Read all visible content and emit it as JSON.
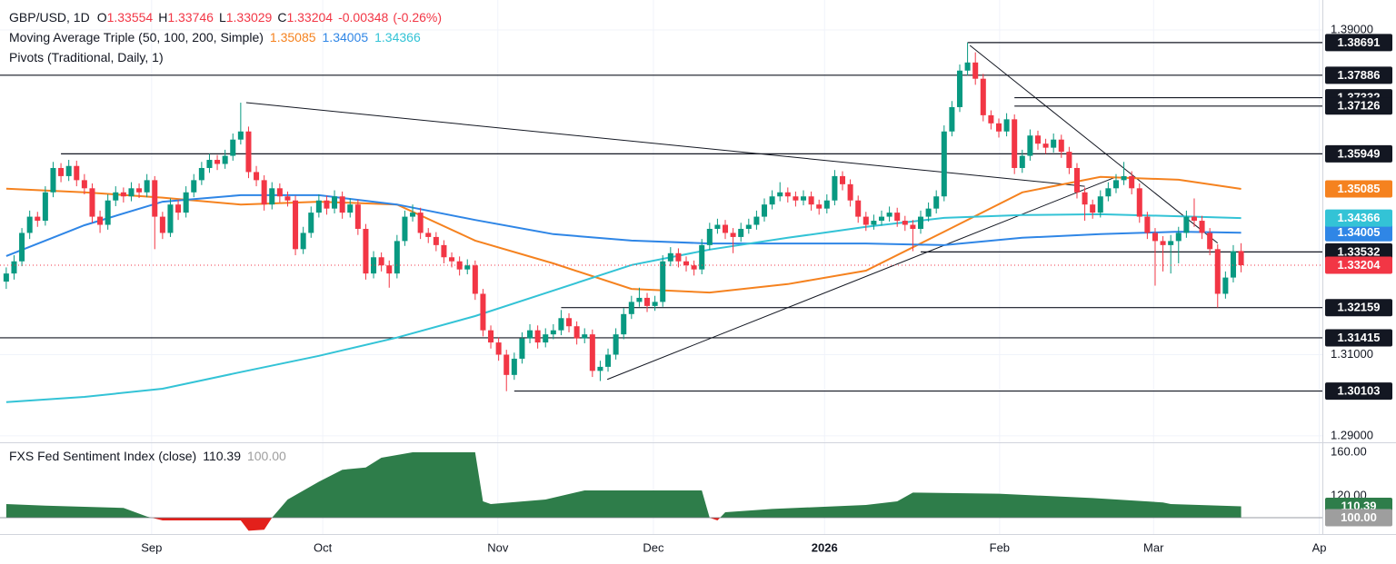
{
  "chart_data": {
    "type": "candlestick",
    "symbol": "GBP/USD, 1D",
    "ohlc_labels": [
      "O",
      "H",
      "L",
      "C"
    ],
    "change": -0.00348,
    "change_pct": {
      "value": -0.26,
      "label": "(-0.26%)"
    },
    "up_color": "#089981",
    "down_color": "#f23645",
    "grid": true,
    "xlim": [
      -0.8,
      168.4
    ],
    "xticks": [
      {
        "value": 18.6,
        "label": "Sep"
      },
      {
        "value": 40.5,
        "label": "Oct"
      },
      {
        "value": 62.9,
        "label": "Nov"
      },
      {
        "value": 82.8,
        "label": "Dec"
      },
      {
        "value": 104.7,
        "label": "2026"
      },
      {
        "value": 127.1,
        "label": "Feb"
      },
      {
        "value": 146.8,
        "label": "Mar"
      },
      {
        "value": 168.0,
        "label": "Ap"
      }
    ],
    "ylim": [
      1.2884,
      1.3974
    ],
    "yticks": [
      {
        "value": 1.39,
        "label": "1.39000"
      },
      {
        "value": 1.31,
        "label": "1.31000"
      },
      {
        "value": 1.29,
        "label": "1.29000"
      }
    ],
    "candles": [
      [
        1.328,
        1.3315,
        1.3262,
        1.33
      ],
      [
        1.33,
        1.3345,
        1.3285,
        1.333
      ],
      [
        1.333,
        1.3412,
        1.3318,
        1.34
      ],
      [
        1.34,
        1.3455,
        1.3385,
        1.344
      ],
      [
        1.344,
        1.3452,
        1.3415,
        1.343
      ],
      [
        1.343,
        1.3515,
        1.3418,
        1.35
      ],
      [
        1.35,
        1.3575,
        1.3488,
        1.356
      ],
      [
        1.356,
        1.3572,
        1.3525,
        1.354
      ],
      [
        1.354,
        1.358,
        1.3528,
        1.3565
      ],
      [
        1.3565,
        1.3578,
        1.3515,
        1.353
      ],
      [
        1.353,
        1.3545,
        1.3495,
        1.351
      ],
      [
        1.351,
        1.3522,
        1.3425,
        1.344
      ],
      [
        1.344,
        1.3455,
        1.34,
        1.342
      ],
      [
        1.342,
        1.3495,
        1.3408,
        1.348
      ],
      [
        1.348,
        1.3515,
        1.3466,
        1.35
      ],
      [
        1.35,
        1.3512,
        1.3475,
        1.349
      ],
      [
        1.349,
        1.3525,
        1.3478,
        1.351
      ],
      [
        1.351,
        1.3522,
        1.3486,
        1.35
      ],
      [
        1.35,
        1.3545,
        1.3488,
        1.353
      ],
      [
        1.353,
        1.354,
        1.336,
        1.344
      ],
      [
        1.344,
        1.3452,
        1.3385,
        1.34
      ],
      [
        1.34,
        1.3485,
        1.339,
        1.347
      ],
      [
        1.347,
        1.3482,
        1.3432,
        1.345
      ],
      [
        1.345,
        1.3515,
        1.3438,
        1.35
      ],
      [
        1.35,
        1.3545,
        1.3488,
        1.353
      ],
      [
        1.353,
        1.3575,
        1.3518,
        1.356
      ],
      [
        1.356,
        1.3595,
        1.3548,
        1.358
      ],
      [
        1.358,
        1.3592,
        1.3555,
        1.357
      ],
      [
        1.357,
        1.3605,
        1.3558,
        1.359
      ],
      [
        1.359,
        1.3645,
        1.3578,
        1.363
      ],
      [
        1.363,
        1.3721,
        1.3618,
        1.365
      ],
      [
        1.365,
        1.3662,
        1.3535,
        1.355
      ],
      [
        1.355,
        1.3565,
        1.3515,
        1.353
      ],
      [
        1.353,
        1.3542,
        1.3455,
        1.347
      ],
      [
        1.347,
        1.3525,
        1.3458,
        1.351
      ],
      [
        1.351,
        1.3522,
        1.3475,
        1.349
      ],
      [
        1.349,
        1.3502,
        1.3465,
        1.348
      ],
      [
        1.348,
        1.3492,
        1.3345,
        1.336
      ],
      [
        1.336,
        1.3415,
        1.3348,
        1.34
      ],
      [
        1.34,
        1.3465,
        1.3388,
        1.345
      ],
      [
        1.345,
        1.3495,
        1.3438,
        1.348
      ],
      [
        1.348,
        1.3492,
        1.3445,
        1.346
      ],
      [
        1.346,
        1.3505,
        1.3448,
        1.349
      ],
      [
        1.349,
        1.3502,
        1.3435,
        1.345
      ],
      [
        1.345,
        1.3485,
        1.3438,
        1.347
      ],
      [
        1.347,
        1.3482,
        1.3395,
        1.341
      ],
      [
        1.341,
        1.3422,
        1.3285,
        1.33
      ],
      [
        1.33,
        1.3355,
        1.3288,
        1.334
      ],
      [
        1.334,
        1.3352,
        1.3305,
        1.332
      ],
      [
        1.332,
        1.3332,
        1.3265,
        1.33
      ],
      [
        1.33,
        1.3395,
        1.3288,
        1.338
      ],
      [
        1.338,
        1.3455,
        1.3368,
        1.344
      ],
      [
        1.344,
        1.347,
        1.3428,
        1.345
      ],
      [
        1.345,
        1.3462,
        1.3385,
        1.34
      ],
      [
        1.34,
        1.3412,
        1.3375,
        1.339
      ],
      [
        1.339,
        1.3402,
        1.3355,
        1.337
      ],
      [
        1.337,
        1.3382,
        1.3325,
        1.334
      ],
      [
        1.334,
        1.3352,
        1.3315,
        1.333
      ],
      [
        1.333,
        1.3342,
        1.3295,
        1.331
      ],
      [
        1.331,
        1.3335,
        1.3298,
        1.332
      ],
      [
        1.332,
        1.3332,
        1.3235,
        1.325
      ],
      [
        1.325,
        1.3262,
        1.3145,
        1.316
      ],
      [
        1.316,
        1.3172,
        1.3115,
        1.313
      ],
      [
        1.313,
        1.3142,
        1.3085,
        1.31
      ],
      [
        1.31,
        1.3112,
        1.301,
        1.305
      ],
      [
        1.305,
        1.3105,
        1.3038,
        1.309
      ],
      [
        1.309,
        1.3155,
        1.3078,
        1.314
      ],
      [
        1.314,
        1.3175,
        1.3128,
        1.316
      ],
      [
        1.316,
        1.3172,
        1.3115,
        1.313
      ],
      [
        1.313,
        1.3165,
        1.3118,
        1.315
      ],
      [
        1.315,
        1.3175,
        1.3138,
        1.316
      ],
      [
        1.316,
        1.321,
        1.3148,
        1.319
      ],
      [
        1.319,
        1.3202,
        1.3155,
        1.317
      ],
      [
        1.317,
        1.3182,
        1.3125,
        1.314
      ],
      [
        1.314,
        1.3165,
        1.3128,
        1.315
      ],
      [
        1.315,
        1.3162,
        1.3045,
        1.306
      ],
      [
        1.306,
        1.3085,
        1.3035,
        1.307
      ],
      [
        1.307,
        1.3115,
        1.3058,
        1.31
      ],
      [
        1.31,
        1.3165,
        1.3088,
        1.315
      ],
      [
        1.315,
        1.3215,
        1.3138,
        1.32
      ],
      [
        1.32,
        1.3245,
        1.3188,
        1.323
      ],
      [
        1.323,
        1.3265,
        1.3218,
        1.324
      ],
      [
        1.324,
        1.3252,
        1.3205,
        1.322
      ],
      [
        1.322,
        1.3245,
        1.3208,
        1.323
      ],
      [
        1.323,
        1.3345,
        1.3218,
        1.333
      ],
      [
        1.333,
        1.3365,
        1.3318,
        1.335
      ],
      [
        1.335,
        1.3362,
        1.3315,
        1.333
      ],
      [
        1.333,
        1.3342,
        1.3305,
        1.332
      ],
      [
        1.332,
        1.3332,
        1.3295,
        1.331
      ],
      [
        1.331,
        1.3385,
        1.3298,
        1.337
      ],
      [
        1.337,
        1.3425,
        1.3358,
        1.341
      ],
      [
        1.341,
        1.3435,
        1.3398,
        1.342
      ],
      [
        1.342,
        1.3432,
        1.3385,
        1.34
      ],
      [
        1.34,
        1.3412,
        1.335,
        1.339
      ],
      [
        1.339,
        1.3425,
        1.3378,
        1.341
      ],
      [
        1.341,
        1.3435,
        1.3398,
        1.342
      ],
      [
        1.342,
        1.3455,
        1.3408,
        1.344
      ],
      [
        1.344,
        1.3485,
        1.3428,
        1.347
      ],
      [
        1.347,
        1.3505,
        1.3458,
        1.349
      ],
      [
        1.349,
        1.3525,
        1.3478,
        1.35
      ],
      [
        1.35,
        1.3512,
        1.3475,
        1.349
      ],
      [
        1.349,
        1.3502,
        1.3465,
        1.348
      ],
      [
        1.348,
        1.3505,
        1.3468,
        1.349
      ],
      [
        1.349,
        1.3502,
        1.3455,
        1.347
      ],
      [
        1.347,
        1.3482,
        1.3445,
        1.346
      ],
      [
        1.346,
        1.3495,
        1.3448,
        1.348
      ],
      [
        1.348,
        1.3555,
        1.3468,
        1.354
      ],
      [
        1.354,
        1.3552,
        1.3505,
        1.352
      ],
      [
        1.352,
        1.3532,
        1.3465,
        1.348
      ],
      [
        1.348,
        1.3492,
        1.3425,
        1.344
      ],
      [
        1.344,
        1.3452,
        1.3405,
        1.342
      ],
      [
        1.342,
        1.3445,
        1.3408,
        1.343
      ],
      [
        1.343,
        1.3455,
        1.3418,
        1.344
      ],
      [
        1.344,
        1.3465,
        1.3428,
        1.345
      ],
      [
        1.345,
        1.3462,
        1.3415,
        1.343
      ],
      [
        1.343,
        1.3442,
        1.3405,
        1.342
      ],
      [
        1.342,
        1.3432,
        1.3355,
        1.341
      ],
      [
        1.341,
        1.3455,
        1.3398,
        1.344
      ],
      [
        1.344,
        1.3475,
        1.3428,
        1.346
      ],
      [
        1.346,
        1.3505,
        1.3448,
        1.349
      ],
      [
        1.349,
        1.3665,
        1.3478,
        1.365
      ],
      [
        1.365,
        1.3725,
        1.3638,
        1.371
      ],
      [
        1.371,
        1.3815,
        1.3698,
        1.38
      ],
      [
        1.38,
        1.3869,
        1.3788,
        1.382
      ],
      [
        1.382,
        1.3845,
        1.3765,
        1.378
      ],
      [
        1.378,
        1.3792,
        1.3675,
        1.369
      ],
      [
        1.369,
        1.3702,
        1.3655,
        1.367
      ],
      [
        1.367,
        1.3682,
        1.3635,
        1.365
      ],
      [
        1.365,
        1.3695,
        1.3638,
        1.368
      ],
      [
        1.368,
        1.3692,
        1.3545,
        1.356
      ],
      [
        1.356,
        1.3605,
        1.3548,
        1.359
      ],
      [
        1.359,
        1.3655,
        1.3578,
        1.364
      ],
      [
        1.364,
        1.3652,
        1.3605,
        1.362
      ],
      [
        1.362,
        1.3632,
        1.3595,
        1.361
      ],
      [
        1.361,
        1.3645,
        1.3598,
        1.363
      ],
      [
        1.363,
        1.3642,
        1.3585,
        1.36
      ],
      [
        1.36,
        1.3612,
        1.3545,
        1.356
      ],
      [
        1.356,
        1.3572,
        1.3485,
        1.35
      ],
      [
        1.35,
        1.3512,
        1.343,
        1.347
      ],
      [
        1.347,
        1.3482,
        1.3435,
        1.345
      ],
      [
        1.345,
        1.3505,
        1.3438,
        1.349
      ],
      [
        1.349,
        1.3525,
        1.3478,
        1.351
      ],
      [
        1.351,
        1.3545,
        1.3498,
        1.353
      ],
      [
        1.353,
        1.3575,
        1.3518,
        1.354
      ],
      [
        1.354,
        1.3552,
        1.3495,
        1.351
      ],
      [
        1.351,
        1.3522,
        1.3425,
        1.344
      ],
      [
        1.344,
        1.3452,
        1.3385,
        1.34
      ],
      [
        1.34,
        1.3412,
        1.327,
        1.338
      ],
      [
        1.338,
        1.3392,
        1.3305,
        1.337
      ],
      [
        1.337,
        1.3395,
        1.33,
        1.338
      ],
      [
        1.338,
        1.3415,
        1.3325,
        1.34
      ],
      [
        1.34,
        1.3455,
        1.3388,
        1.344
      ],
      [
        1.344,
        1.3485,
        1.3415,
        1.343
      ],
      [
        1.343,
        1.3442,
        1.3385,
        1.34
      ],
      [
        1.34,
        1.3412,
        1.3345,
        1.336
      ],
      [
        1.336,
        1.3372,
        1.3216,
        1.325
      ],
      [
        1.325,
        1.3305,
        1.3238,
        1.329
      ],
      [
        1.329,
        1.337,
        1.3278,
        1.3355
      ],
      [
        1.33554,
        1.33746,
        1.33029,
        1.33204
      ]
    ],
    "moving_averages": {
      "name": "Moving Average Triple (50, 100, 200, Simple)",
      "series": [
        {
          "color": "#f5821f",
          "x": [
            0,
            10,
            20,
            30,
            40,
            50,
            60,
            70,
            80,
            90,
            100,
            110,
            120,
            130,
            140,
            150,
            158
          ],
          "values": [
            1.3509,
            1.35,
            1.3487,
            1.347,
            1.3477,
            1.347,
            1.3381,
            1.3325,
            1.3262,
            1.3253,
            1.3274,
            1.3307,
            1.3403,
            1.35,
            1.3538,
            1.3531,
            1.35085
          ]
        },
        {
          "color": "#2f86e6",
          "x": [
            0,
            10,
            20,
            30,
            40,
            50,
            60,
            70,
            80,
            90,
            100,
            110,
            120,
            130,
            140,
            150,
            158
          ],
          "values": [
            1.3343,
            1.3419,
            1.3477,
            1.3493,
            1.3493,
            1.347,
            1.3432,
            1.3397,
            1.3381,
            1.3374,
            1.3374,
            1.3374,
            1.337,
            1.3388,
            1.3397,
            1.3403,
            1.34005
          ]
        },
        {
          "color": "#33c3d6",
          "x": [
            0,
            10,
            20,
            30,
            40,
            50,
            60,
            70,
            80,
            90,
            100,
            110,
            120,
            130,
            140,
            150,
            158
          ],
          "values": [
            1.2983,
            1.2996,
            1.3016,
            1.3057,
            1.3097,
            1.3142,
            1.3195,
            1.3258,
            1.3321,
            1.3359,
            1.3388,
            1.3415,
            1.3437,
            1.3444,
            1.3446,
            1.3441,
            1.34366
          ]
        }
      ]
    },
    "pivots": {
      "name": "Pivots (Traditional, Daily, 1)",
      "levels": [
        {
          "value": 1.38691,
          "start": 123
        },
        {
          "value": 1.37886,
          "start": -0.8
        },
        {
          "value": 1.37332,
          "start": 129
        },
        {
          "value": 1.37126,
          "start": 129
        },
        {
          "value": 1.35949,
          "start": 7
        },
        {
          "value": 1.33532,
          "start": 117
        },
        {
          "value": 1.32159,
          "start": 71
        },
        {
          "value": 1.31415,
          "start": -0.8
        },
        {
          "value": 1.30103,
          "start": 65
        }
      ]
    },
    "trendlines": [
      {
        "x": [
          30.7,
          138
        ],
        "y": [
          1.3721,
          1.3515
        ]
      },
      {
        "x": [
          76.9,
          142
        ],
        "y": [
          1.3039,
          1.3538
        ]
      },
      {
        "x": [
          123.3,
          155
        ],
        "y": [
          1.3862,
          1.3375
        ]
      }
    ],
    "indicator": {
      "type": "area",
      "name": "FXS Fed Sentiment Index (close)",
      "up_color": "#2e7d4a",
      "down_color": "#e3201b",
      "baseline": {
        "value": 100,
        "label": "100.00"
      },
      "ylim": [
        85,
        168.33
      ],
      "yticks": [
        {
          "value": 160,
          "label": "160.00"
        },
        {
          "value": 120,
          "label": "120.00"
        }
      ],
      "x": [
        0,
        5,
        10,
        15,
        18,
        20,
        30,
        31,
        33,
        34,
        36,
        40,
        43,
        46,
        48,
        52,
        60,
        61,
        62,
        69,
        74,
        89,
        90,
        91,
        92,
        98,
        110,
        114,
        116,
        127,
        139,
        148,
        149,
        158
      ],
      "values": [
        112.5,
        111,
        110,
        109,
        101,
        97.5,
        97.5,
        88,
        89,
        100,
        116.7,
        133,
        144,
        146,
        155,
        160,
        160,
        115,
        112.5,
        116.7,
        125,
        125,
        100,
        97.5,
        105,
        108,
        111.7,
        115,
        123,
        122,
        118,
        114,
        112.5,
        110.39
      ]
    }
  }
}
